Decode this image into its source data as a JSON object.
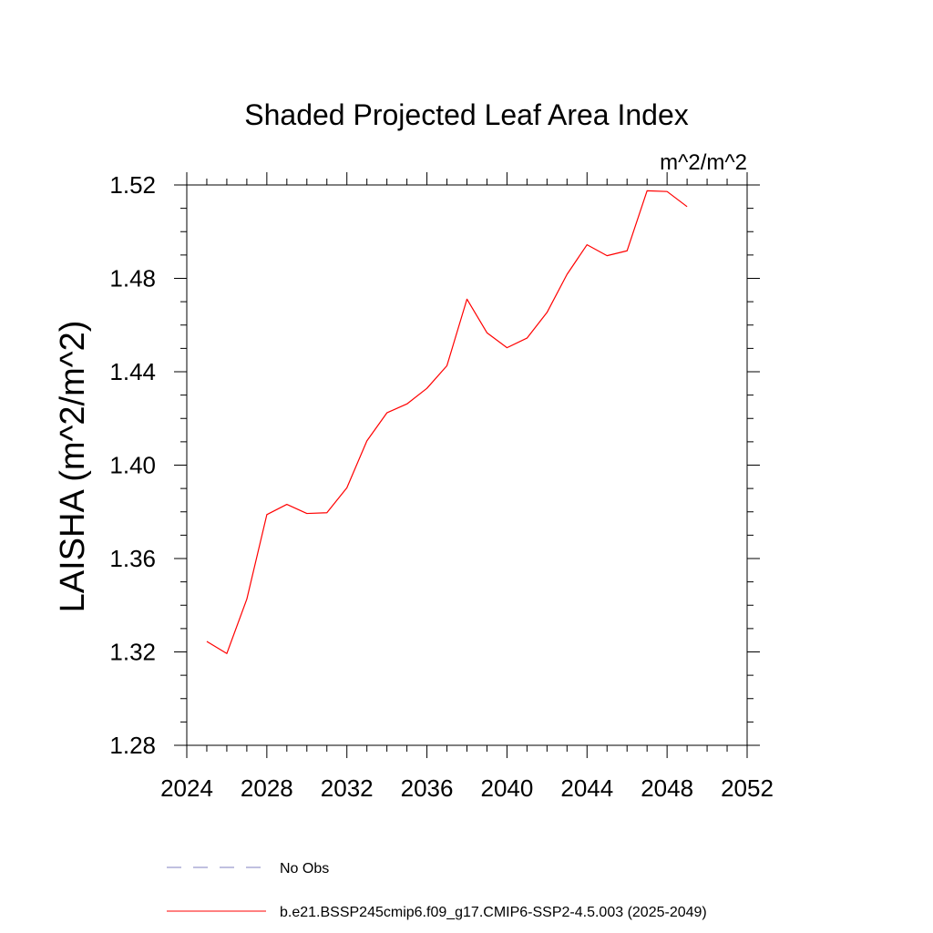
{
  "chart_data": {
    "type": "line",
    "title": "Shaded Projected Leaf Area Index",
    "units_label": "m^2/m^2",
    "ylabel": "LAISHA  (m^2/m^2)",
    "xlabel": "",
    "xlim": [
      2024,
      2052
    ],
    "ylim": [
      1.28,
      1.52
    ],
    "x_ticks": [
      "2024",
      "2028",
      "2032",
      "2036",
      "2040",
      "2044",
      "2048",
      "2052"
    ],
    "y_ticks": [
      "1.28",
      "1.32",
      "1.36",
      "1.40",
      "1.44",
      "1.48",
      "1.52"
    ],
    "grid": false,
    "series": [
      {
        "name": "b.e21.BSSP245cmip6.f09_g17.CMIP6-SSP2-4.5.003 (2025-2049)",
        "color": "#ff0000",
        "x": [
          2025,
          2026,
          2027,
          2028,
          2029,
          2030,
          2031,
          2032,
          2033,
          2034,
          2035,
          2036,
          2037,
          2038,
          2039,
          2040,
          2041,
          2042,
          2043,
          2044,
          2045,
          2046,
          2047,
          2048,
          2049
        ],
        "y": [
          1.3245,
          1.3193,
          1.3426,
          1.3788,
          1.3832,
          1.3793,
          1.3796,
          1.3903,
          1.4104,
          1.4224,
          1.4262,
          1.4329,
          1.4426,
          1.4711,
          1.4567,
          1.4503,
          1.4544,
          1.4654,
          1.4817,
          1.4944,
          1.4897,
          1.4918,
          1.5175,
          1.5172,
          1.5107
        ]
      }
    ],
    "legend": {
      "placement": "bottom",
      "entries": [
        {
          "label": "No Obs",
          "color": "#8080c0",
          "style": "dashed"
        },
        {
          "label": "b.e21.BSSP245cmip6.f09_g17.CMIP6-SSP2-4.5.003 (2025-2049)",
          "color": "#ff0000",
          "style": "solid"
        }
      ]
    }
  }
}
